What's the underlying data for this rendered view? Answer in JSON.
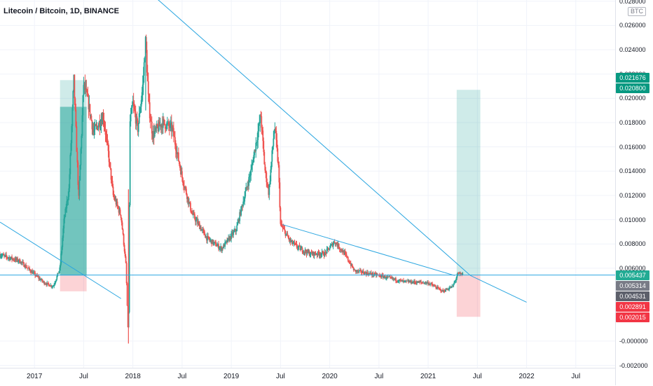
{
  "header": {
    "symbol_title": "Litecoin / Bitcoin, 1D, BINANCE",
    "unit": "BTC"
  },
  "chart_data": {
    "type": "candlestick",
    "title": "Litecoin / Bitcoin, 1D, BINANCE",
    "ylim": [
      -0.0022,
      0.0281
    ],
    "xlim": [
      2016.65,
      2022.9
    ],
    "grid": true,
    "y_ticks": [
      "0.028000",
      "0.026000",
      "0.024000",
      "0.022000",
      "0.020000",
      "0.018000",
      "0.016000",
      "0.014000",
      "0.012000",
      "0.010000",
      "0.008000",
      "0.006000",
      "-0.000000",
      "-0.002000"
    ],
    "y_tick_values": [
      0.028,
      0.026,
      0.024,
      0.022,
      0.02,
      0.018,
      0.016,
      0.014,
      0.012,
      0.01,
      0.008,
      0.006,
      0.0,
      -0.002
    ],
    "x_ticks": [
      {
        "label": "2017",
        "t": 2017.0
      },
      {
        "label": "Jul",
        "t": 2017.5
      },
      {
        "label": "2018",
        "t": 2018.0
      },
      {
        "label": "Jul",
        "t": 2018.5
      },
      {
        "label": "2019",
        "t": 2019.0
      },
      {
        "label": "Jul",
        "t": 2019.5
      },
      {
        "label": "2020",
        "t": 2020.0
      },
      {
        "label": "Jul",
        "t": 2020.5
      },
      {
        "label": "2021",
        "t": 2021.0
      },
      {
        "label": "Jul",
        "t": 2021.5
      },
      {
        "label": "2022",
        "t": 2022.0
      },
      {
        "label": "Jul",
        "t": 2022.5
      }
    ],
    "price_series": [
      [
        2016.65,
        0.0071
      ],
      [
        2016.85,
        0.0066
      ],
      [
        2017.0,
        0.0055
      ],
      [
        2017.1,
        0.0048
      ],
      [
        2017.19,
        0.0045
      ],
      [
        2017.26,
        0.006
      ],
      [
        2017.3,
        0.0099
      ],
      [
        2017.35,
        0.0125
      ],
      [
        2017.4,
        0.0215
      ],
      [
        2017.45,
        0.0117
      ],
      [
        2017.5,
        0.0212
      ],
      [
        2017.55,
        0.0195
      ],
      [
        2017.6,
        0.0172
      ],
      [
        2017.7,
        0.0185
      ],
      [
        2017.75,
        0.0155
      ],
      [
        2017.8,
        0.012
      ],
      [
        2017.88,
        0.0103
      ],
      [
        2017.93,
        0.0062
      ],
      [
        2017.955,
        -0.0002
      ],
      [
        2017.97,
        0.018
      ],
      [
        2018.0,
        0.0195
      ],
      [
        2018.05,
        0.0175
      ],
      [
        2018.1,
        0.021
      ],
      [
        2018.13,
        0.0248
      ],
      [
        2018.16,
        0.0195
      ],
      [
        2018.2,
        0.017
      ],
      [
        2018.3,
        0.018
      ],
      [
        2018.4,
        0.0175
      ],
      [
        2018.5,
        0.0135
      ],
      [
        2018.6,
        0.0105
      ],
      [
        2018.75,
        0.0085
      ],
      [
        2018.9,
        0.0076
      ],
      [
        2019.05,
        0.0092
      ],
      [
        2019.12,
        0.0115
      ],
      [
        2019.2,
        0.014
      ],
      [
        2019.27,
        0.0172
      ],
      [
        2019.3,
        0.0186
      ],
      [
        2019.34,
        0.0142
      ],
      [
        2019.38,
        0.0122
      ],
      [
        2019.44,
        0.0178
      ],
      [
        2019.48,
        0.0142
      ],
      [
        2019.5,
        0.0096
      ],
      [
        2019.6,
        0.0082
      ],
      [
        2019.7,
        0.0076
      ],
      [
        2019.8,
        0.0072
      ],
      [
        2019.95,
        0.0072
      ],
      [
        2020.05,
        0.0082
      ],
      [
        2020.15,
        0.0072
      ],
      [
        2020.25,
        0.0058
      ],
      [
        2020.5,
        0.0054
      ],
      [
        2020.75,
        0.0049
      ],
      [
        2021.0,
        0.0048
      ],
      [
        2021.15,
        0.0041
      ],
      [
        2021.25,
        0.0045
      ],
      [
        2021.3,
        0.0055
      ],
      [
        2021.35,
        0.0055
      ]
    ],
    "series": [
      {
        "name": "",
        "values": [
          0.0054,
          0.0054
        ]
      }
    ],
    "drawings": {
      "trendlines": [
        {
          "from": [
            2016.65,
            0.0098
          ],
          "to": [
            2017.88,
            0.0035
          ]
        },
        {
          "from": [
            2017.7,
            0.0321
          ],
          "to": [
            2021.43,
            0.0054
          ]
        },
        {
          "from": [
            2021.43,
            0.0054
          ],
          "to": [
            2022.0,
            0.0032
          ]
        },
        {
          "from": [
            2019.52,
            0.0096
          ],
          "to": [
            2021.27,
            0.0054
          ]
        }
      ],
      "horizontal_line": 0.005437,
      "positions": [
        {
          "start": 2017.26,
          "end": 2017.53,
          "entry": 0.0054,
          "target": 0.0215,
          "stop": 0.0041,
          "target_fill": 0.0193
        },
        {
          "start": 2021.29,
          "end": 2021.53,
          "entry": 0.0054,
          "target": 0.0207,
          "stop": 0.002,
          "target_fill": null
        }
      ]
    },
    "price_tags": [
      {
        "label": "0.021676",
        "value": 0.021676,
        "color": "#089981"
      },
      {
        "label": "0.020800",
        "value": 0.0208,
        "color": "#089981"
      },
      {
        "label": "0.005437",
        "value": 0.005437,
        "color": "#22ab94"
      },
      {
        "label": "0.005314",
        "value": 0.005314,
        "color": "#787b86"
      },
      {
        "label": "0.004531",
        "value": 0.004531,
        "color": "#5d606b"
      },
      {
        "label": "0.002891",
        "value": 0.002891,
        "color": "#f23645"
      },
      {
        "label": "0.002015",
        "value": 0.002015,
        "color": "#f23645"
      }
    ]
  },
  "colors": {
    "up": "#26a69a",
    "down": "#ef5350",
    "trendline": "#2ba6e0",
    "target_zone": "rgba(38,166,154,0.22)",
    "target_zone_filled": "rgba(38,166,154,0.55)",
    "stop_zone": "rgba(242,54,69,0.22)",
    "grid": "#f0f3fa"
  }
}
